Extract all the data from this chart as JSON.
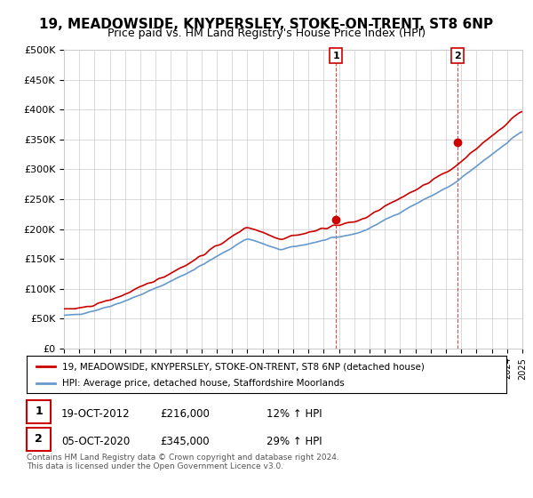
{
  "title": "19, MEADOWSIDE, KNYPERSLEY, STOKE-ON-TRENT, ST8 6NP",
  "subtitle": "Price paid vs. HM Land Registry's House Price Index (HPI)",
  "y_ticks": [
    0,
    50000,
    100000,
    150000,
    200000,
    250000,
    300000,
    350000,
    400000,
    450000,
    500000
  ],
  "y_tick_labels": [
    "£0",
    "£50K",
    "£100K",
    "£150K",
    "£200K",
    "£250K",
    "£300K",
    "£350K",
    "£400K",
    "£450K",
    "£500K"
  ],
  "ylim": [
    0,
    500000
  ],
  "x_start_year": 1995,
  "x_end_year": 2025,
  "red_line_color": "#cc0000",
  "blue_line_color": "#6699cc",
  "sale1_year": 2012.8,
  "sale1_price": 216000,
  "sale2_year": 2020.75,
  "sale2_price": 345000,
  "vline_color": "#cc0000",
  "marker_color": "#cc0000",
  "legend1": "19, MEADOWSIDE, KNYPERSLEY, STOKE-ON-TRENT, ST8 6NP (detached house)",
  "legend2": "HPI: Average price, detached house, Staffordshire Moorlands",
  "table_row1_num": "1",
  "table_row1_date": "19-OCT-2012",
  "table_row1_price": "£216,000",
  "table_row1_hpi": "12% ↑ HPI",
  "table_row2_num": "2",
  "table_row2_date": "05-OCT-2020",
  "table_row2_price": "£345,000",
  "table_row2_hpi": "29% ↑ HPI",
  "footer": "Contains HM Land Registry data © Crown copyright and database right 2024.\nThis data is licensed under the Open Government Licence v3.0.",
  "bg_color": "#ffffff",
  "grid_color": "#cccccc",
  "title_fontsize": 11,
  "subtitle_fontsize": 9
}
